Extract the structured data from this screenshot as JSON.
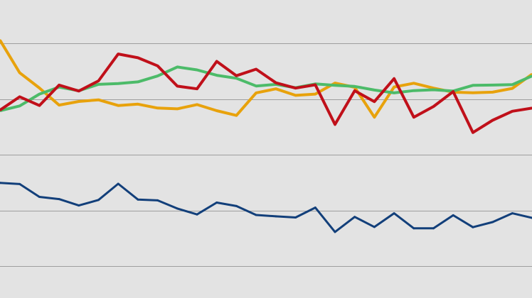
{
  "chart_data": {
    "type": "line",
    "title": "",
    "xlabel": "",
    "ylabel": "",
    "grid": true,
    "legend": "none",
    "background": "#e3e3e3",
    "gridline_color": "#9e9e9e",
    "ylim": [
      0,
      180
    ],
    "gridlines": [
      0,
      40,
      80,
      120,
      160
    ],
    "x": [
      0,
      1,
      2,
      3,
      4,
      5,
      6,
      7,
      8,
      9,
      10,
      11,
      12,
      13,
      14,
      15,
      16,
      17,
      18,
      19,
      20,
      21,
      22,
      23,
      24,
      25,
      26,
      27
    ],
    "series": [
      {
        "color": "#e8a20c",
        "values": [
          162.2,
          138.8,
          127.9,
          115.6,
          118.2,
          119.4,
          115.3,
          116.3,
          113.5,
          112.9,
          116.0,
          111.6,
          108.2,
          124.4,
          127.3,
          122.6,
          123.5,
          131.4,
          128.4,
          106.9,
          128.6,
          131.3,
          127.8,
          124.9,
          124.5,
          124.9,
          127.6,
          137.8
        ]
      },
      {
        "color": "#4cbb69",
        "values": [
          111.6,
          115.0,
          123.5,
          128.5,
          125.9,
          130.5,
          131.1,
          132.3,
          136.5,
          143.0,
          140.9,
          137.0,
          134.9,
          129.3,
          130.5,
          128.1,
          130.8,
          129.8,
          129.0,
          126.4,
          124.4,
          126.0,
          126.6,
          125.7,
          129.8,
          130.0,
          130.3,
          136.5
        ]
      },
      {
        "color": "#c0101a",
        "values": [
          112.0,
          121.6,
          115.3,
          130.0,
          125.7,
          133.0,
          152.3,
          149.6,
          143.8,
          129.2,
          127.3,
          147.0,
          136.7,
          141.4,
          131.6,
          127.8,
          130.2,
          101.7,
          125.9,
          118.1,
          134.6,
          106.9,
          114.6,
          125.3,
          95.9,
          104.7,
          111.2,
          113.5
        ]
      },
      {
        "color": "#123f7a",
        "values": [
          59.7,
          58.9,
          49.7,
          48.1,
          43.5,
          47.5,
          59.1,
          47.8,
          47.2,
          41.3,
          37.1,
          45.6,
          43.1,
          36.7,
          35.7,
          34.9,
          42.0,
          24.5,
          35.3,
          28.1,
          37.9,
          27.1,
          27.1,
          36.5,
          27.9,
          31.6,
          37.9,
          34.6
        ]
      }
    ]
  }
}
